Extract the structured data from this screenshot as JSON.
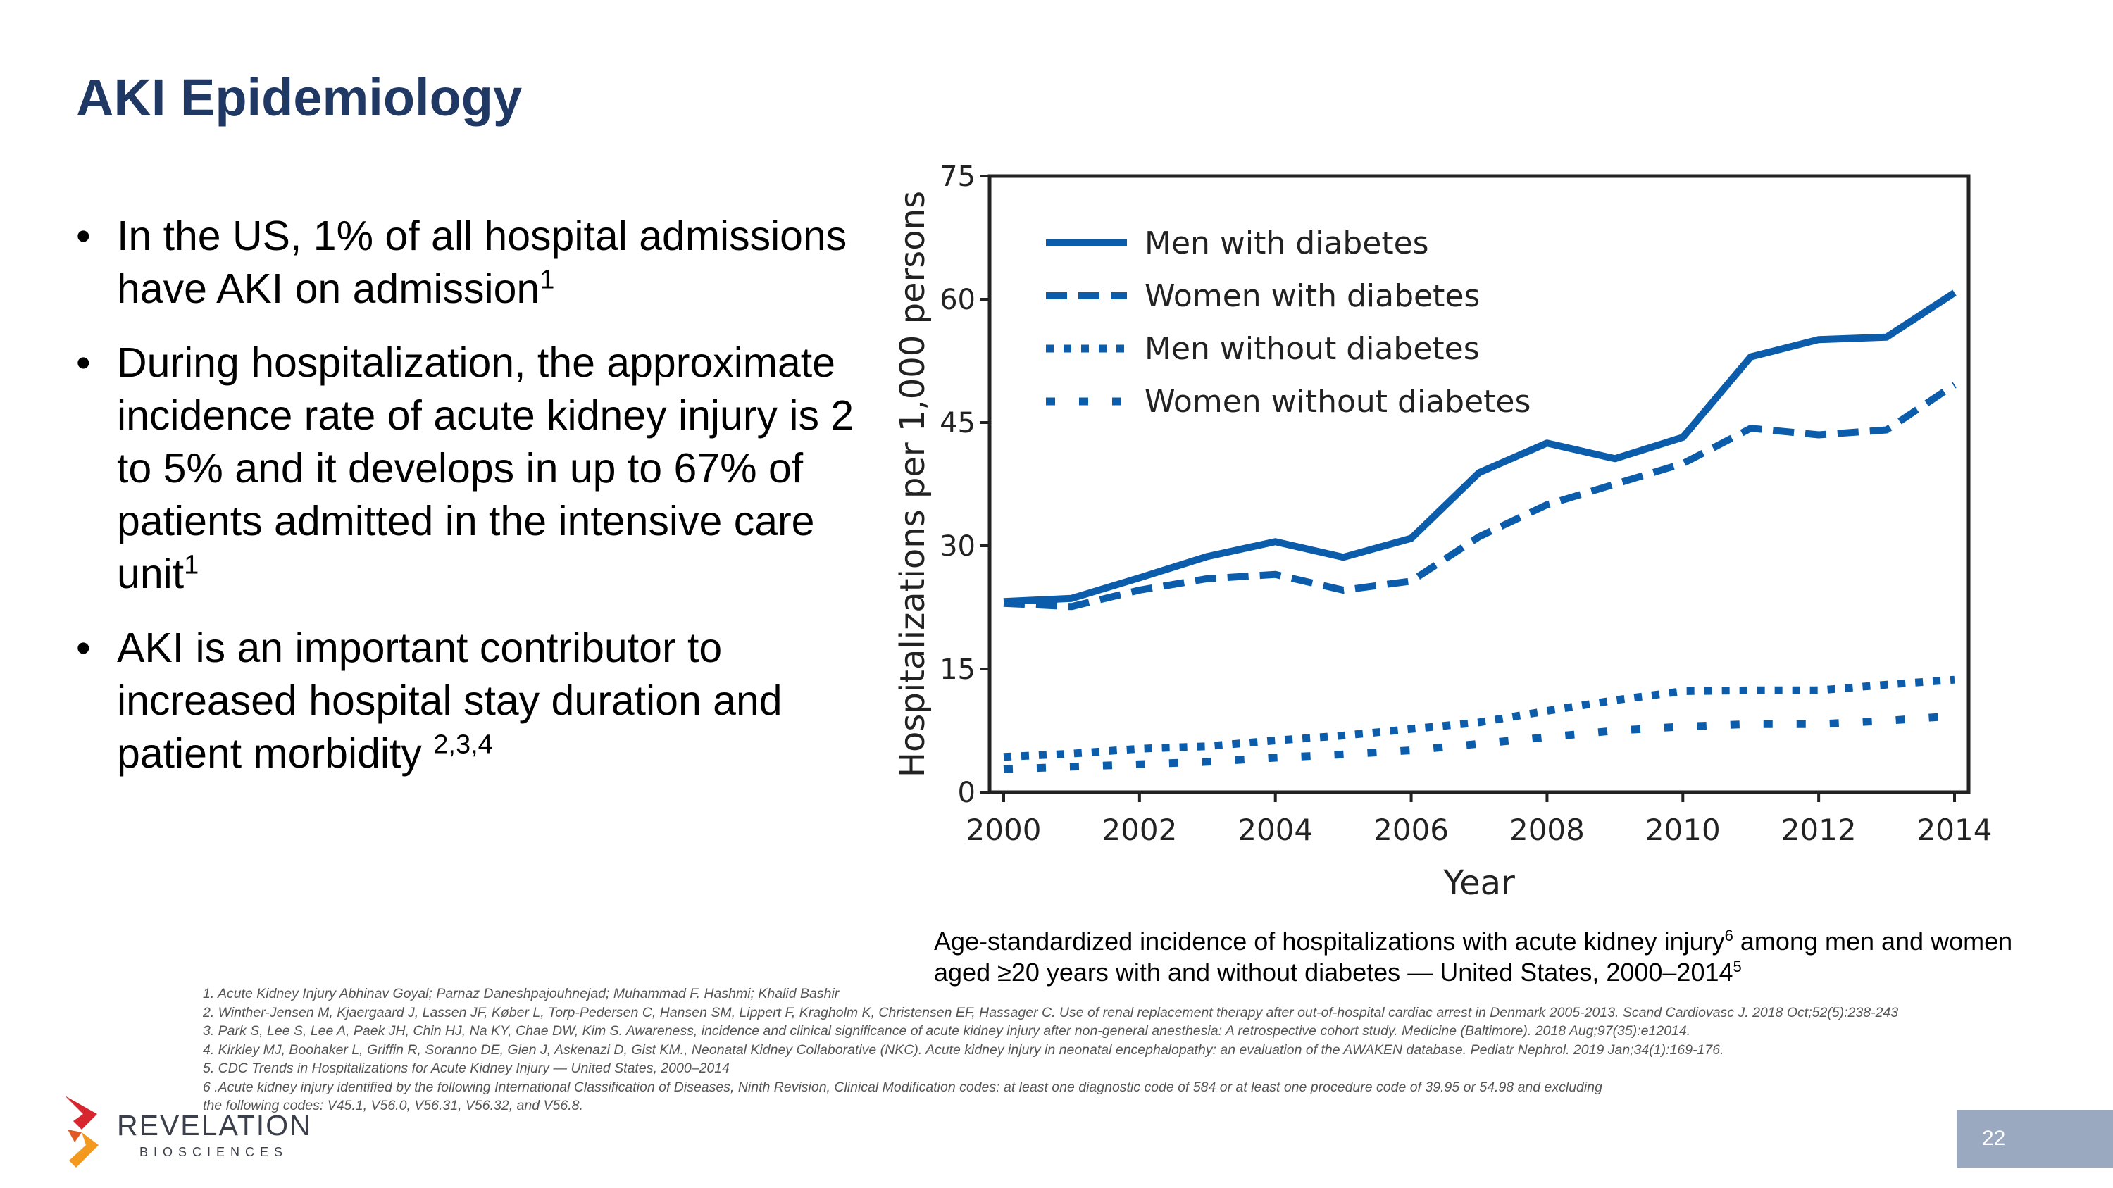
{
  "slide": {
    "title": "AKI Epidemiology",
    "page_number": "22"
  },
  "bullets": [
    {
      "text": "In the US, 1% of all hospital admissions have AKI on admission",
      "sup": "1"
    },
    {
      "text": "During hospitalization, the approximate incidence rate of acute kidney injury is 2 to 5% and it develops in up to 67% of patients admitted in the intensive care unit",
      "sup": "1"
    },
    {
      "text": "AKI is an important contributor to increased hospital stay duration and patient morbidity ",
      "sup": "2,3,4"
    }
  ],
  "caption": {
    "part1": "Age-standardized incidence of hospitalizations with acute kidney injury",
    "sup1": "6",
    "part2": " among men and women aged ≥20 years with and without diabetes — United States, 2000–2014",
    "sup2": "5"
  },
  "references": [
    "1. Acute Kidney Injury Abhinav Goyal; Parnaz Daneshpajouhnejad; Muhammad F. Hashmi; Khalid Bashir",
    "2. Winther-Jensen M, Kjaergaard J, Lassen JF, Køber L, Torp-Pedersen C, Hansen SM, Lippert F, Kragholm K, Christensen EF, Hassager C. Use of renal replacement therapy after out-of-hospital cardiac arrest in Denmark 2005-2013. Scand Cardiovasc J. 2018 Oct;52(5):238-243",
    "3. Park S, Lee S, Lee A, Paek JH, Chin HJ, Na KY, Chae DW, Kim S. Awareness, incidence and clinical significance of acute kidney injury after non-general anesthesia: A retrospective cohort study. Medicine (Baltimore). 2018 Aug;97(35):e12014.",
    "4. Kirkley MJ, Boohaker L, Griffin R, Soranno DE, Gien J, Askenazi D, Gist KM., Neonatal Kidney Collaborative (NKC). Acute kidney injury in neonatal encephalopathy: an evaluation of the AWAKEN database. Pediatr Nephrol. 2019 Jan;34(1):169-176.",
    "5. CDC Trends in Hospitalizations for Acute Kidney Injury — United States, 2000–2014",
    "6 .Acute kidney injury identified by the following International Classification of Diseases, Ninth Revision, Clinical Modification codes: at least one diagnostic code of 584 or at least one procedure code of 39.95 or 54.98 and excluding",
    "the following codes: V45.1, V56.0, V56.31, V56.32, and V56.8."
  ],
  "logo": {
    "name": "REVELATION",
    "sub": "BIOSCIENCES",
    "colors": [
      "#d7262e",
      "#f39a1e"
    ]
  },
  "colors": {
    "title": "#1f3864",
    "series": "#0b5cab",
    "page_badge": "#9aa9c0"
  },
  "chart_data": {
    "type": "line",
    "title": "",
    "xlabel": "Year",
    "ylabel": "Hospitalizations per 1,000 persons",
    "xlim": [
      2000,
      2014
    ],
    "ylim": [
      0,
      75
    ],
    "x_ticks": [
      2000,
      2002,
      2004,
      2006,
      2008,
      2010,
      2012,
      2014
    ],
    "y_ticks": [
      0,
      15,
      30,
      45,
      60,
      75
    ],
    "grid": false,
    "legend_position": "top-left",
    "x": [
      2000,
      2001,
      2002,
      2003,
      2004,
      2005,
      2006,
      2007,
      2008,
      2009,
      2010,
      2011,
      2012,
      2013,
      2014
    ],
    "series": [
      {
        "name": "Men with diabetes",
        "style": "solid",
        "values": [
          23.2,
          23.6,
          26.1,
          28.7,
          30.5,
          28.6,
          30.9,
          38.9,
          42.5,
          40.6,
          43.2,
          53.0,
          55.1,
          55.4,
          60.8
        ]
      },
      {
        "name": "Women with diabetes",
        "style": "dashed",
        "values": [
          23.0,
          22.6,
          24.6,
          26.0,
          26.5,
          24.6,
          25.7,
          31.1,
          35.0,
          37.5,
          40.0,
          44.3,
          43.5,
          44.1,
          49.6
        ]
      },
      {
        "name": "Men without diabetes",
        "style": "dotted",
        "values": [
          4.3,
          4.7,
          5.3,
          5.6,
          6.3,
          6.9,
          7.7,
          8.5,
          9.9,
          11.2,
          12.3,
          12.4,
          12.4,
          13.1,
          13.7
        ]
      },
      {
        "name": "Women without diabetes",
        "style": "sparse-dotted",
        "values": [
          2.8,
          3.1,
          3.4,
          3.7,
          4.2,
          4.6,
          5.1,
          5.9,
          6.7,
          7.5,
          8.0,
          8.3,
          8.3,
          8.7,
          9.3
        ]
      }
    ]
  }
}
